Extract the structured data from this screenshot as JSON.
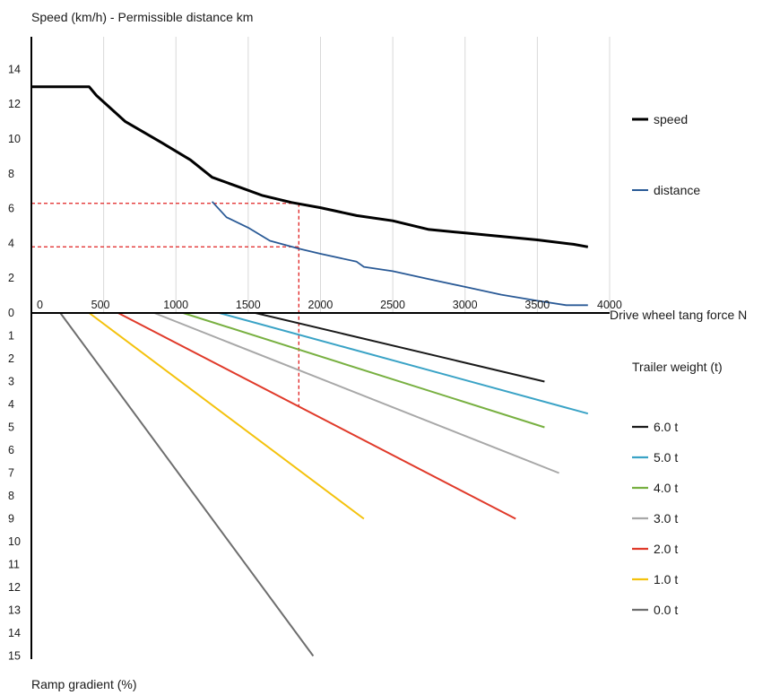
{
  "chart_data": [
    {
      "type": "line",
      "title": "Speed (km/h) - Permissible distance km",
      "xlabel": "Drive wheel tang force N",
      "ylabel": "",
      "xlim": [
        0,
        4000
      ],
      "ylim": [
        0,
        14
      ],
      "x_ticks": [
        "0",
        "500",
        "1000",
        "1500",
        "2000",
        "2500",
        "3000",
        "3500",
        "4000"
      ],
      "y_ticks": [
        "0",
        "2",
        "4",
        "6",
        "8",
        "10",
        "12",
        "14"
      ],
      "grid": "vertical",
      "legend": "right",
      "series": [
        {
          "name": "speed",
          "color": "#000000",
          "points": [
            [
              0,
              13
            ],
            [
              400,
              13
            ],
            [
              450,
              12.5
            ],
            [
              650,
              11
            ],
            [
              900,
              9.8
            ],
            [
              1100,
              8.8
            ],
            [
              1250,
              7.8
            ],
            [
              1450,
              7.2
            ],
            [
              1600,
              6.75
            ],
            [
              1800,
              6.35
            ],
            [
              2000,
              6.05
            ],
            [
              2250,
              5.6
            ],
            [
              2500,
              5.3
            ],
            [
              2750,
              4.8
            ],
            [
              3000,
              4.6
            ],
            [
              3250,
              4.4
            ],
            [
              3500,
              4.2
            ],
            [
              3750,
              3.95
            ],
            [
              3850,
              3.8
            ]
          ]
        },
        {
          "name": "distance",
          "color": "#2a5a96",
          "points": [
            [
              1250,
              6.4
            ],
            [
              1350,
              5.5
            ],
            [
              1500,
              4.9
            ],
            [
              1650,
              4.15
            ],
            [
              1850,
              3.7
            ],
            [
              2000,
              3.4
            ],
            [
              2250,
              2.95
            ],
            [
              2300,
              2.65
            ],
            [
              2500,
              2.4
            ],
            [
              2750,
              1.95
            ],
            [
              3000,
              1.5
            ],
            [
              3250,
              1.05
            ],
            [
              3500,
              0.7
            ],
            [
              3700,
              0.45
            ],
            [
              3850,
              0.45
            ]
          ]
        }
      ],
      "guide_lines": {
        "color": "#e02020",
        "x": 1850,
        "y_values": [
          6.3,
          3.8
        ]
      }
    },
    {
      "type": "line",
      "title": "",
      "xlabel": "",
      "ylabel": "Ramp gradient (%)",
      "y_inverted": true,
      "xlim": [
        0,
        4000
      ],
      "ylim": [
        0,
        15
      ],
      "y_ticks": [
        "0",
        "1",
        "2",
        "3",
        "4",
        "5",
        "6",
        "7",
        "8",
        "9",
        "10",
        "11",
        "12",
        "13",
        "14",
        "15"
      ],
      "legend_title": "Trailer weight (t)",
      "legend": "right",
      "series": [
        {
          "name": "6.0 t",
          "color": "#1a1a1a",
          "points": [
            [
              1550,
              0
            ],
            [
              3550,
              3
            ]
          ]
        },
        {
          "name": "5.0 t",
          "color": "#3aa3c6",
          "points": [
            [
              1300,
              0
            ],
            [
              3850,
              4.4
            ]
          ]
        },
        {
          "name": "4.0 t",
          "color": "#78b041",
          "points": [
            [
              1050,
              0
            ],
            [
              3550,
              5
            ]
          ]
        },
        {
          "name": "3.0 t",
          "color": "#a8a8a8",
          "points": [
            [
              850,
              0
            ],
            [
              3650,
              7
            ]
          ]
        },
        {
          "name": "2.0 t",
          "color": "#e03a2a",
          "points": [
            [
              600,
              0
            ],
            [
              3350,
              9
            ]
          ]
        },
        {
          "name": "1.0 t",
          "color": "#f4c20d",
          "points": [
            [
              400,
              0
            ],
            [
              2300,
              9
            ]
          ]
        },
        {
          "name": "0.0 t",
          "color": "#6e6e6e",
          "points": [
            [
              200,
              0
            ],
            [
              1950,
              15
            ]
          ]
        }
      ],
      "guide_lines": {
        "color": "#e02020",
        "x": 1850,
        "y_to": 4.1
      }
    }
  ]
}
